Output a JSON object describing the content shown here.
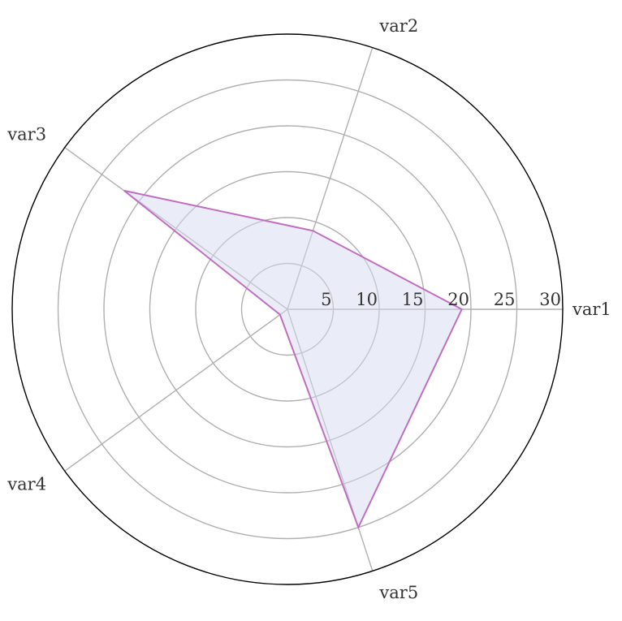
{
  "chart_data": {
    "type": "radar",
    "title": "",
    "categories": [
      "var1",
      "var2",
      "var3",
      "var4",
      "var5"
    ],
    "rlim": [
      0,
      30
    ],
    "rticks": [
      5,
      10,
      15,
      20,
      25,
      30
    ],
    "grid": true,
    "series": [
      {
        "values": [
          19,
          9,
          22,
          1,
          25
        ],
        "line_color": "#c06fc0",
        "fill_color": "#d6d9f0"
      }
    ]
  }
}
